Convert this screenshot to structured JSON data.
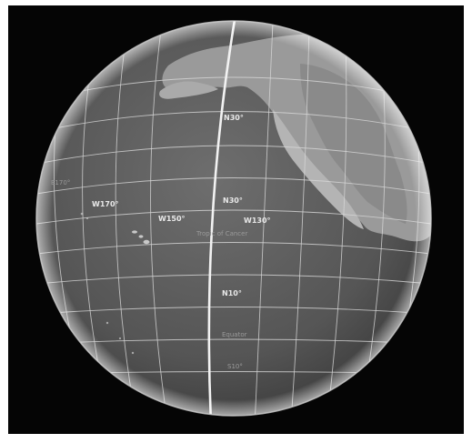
{
  "labels": {
    "n30_top": "N30°",
    "n30_mid": "N30°",
    "n10": "N10°",
    "s10": "S10°",
    "e170": "E170°",
    "w170": "W170°",
    "w150": "W150°",
    "w130": "W130°",
    "tropic": "Tropic of Cancer",
    "equator": "Equator"
  },
  "colors": {
    "background": "#050505",
    "ocean": "#5b5b5b",
    "land": "#9a9a9a",
    "grid": "#d8d8d8",
    "meridian": "#f2f2f2"
  }
}
